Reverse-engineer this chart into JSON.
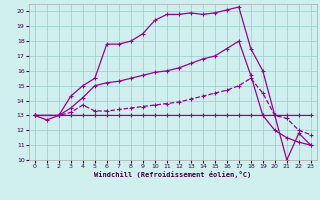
{
  "xlabel": "Windchill (Refroidissement éolien,°C)",
  "bg_color": "#cff0ef",
  "grid_color": "#99cccc",
  "line_color": "#990099",
  "xlim": [
    -0.5,
    23.5
  ],
  "ylim": [
    10,
    20.5
  ],
  "yticks": [
    10,
    11,
    12,
    13,
    14,
    15,
    16,
    17,
    18,
    19,
    20
  ],
  "xticks": [
    0,
    1,
    2,
    3,
    4,
    5,
    6,
    7,
    8,
    9,
    10,
    11,
    12,
    13,
    14,
    15,
    16,
    17,
    18,
    19,
    20,
    21,
    22,
    23
  ],
  "s1_x": [
    0,
    1,
    2,
    3,
    4,
    5,
    6,
    7,
    8,
    9,
    10,
    11,
    12,
    13,
    14,
    15,
    16,
    17,
    18,
    19,
    20,
    21,
    22,
    23
  ],
  "s1_y": [
    13,
    12.7,
    13,
    13,
    13,
    13,
    13,
    13,
    13,
    13,
    13,
    13,
    13,
    13,
    13,
    13,
    13,
    13,
    13,
    13,
    13,
    13,
    13,
    13
  ],
  "s2_x": [
    0,
    2,
    3,
    4,
    5,
    6,
    7,
    8,
    9,
    10,
    11,
    12,
    13,
    14,
    15,
    16,
    17,
    18,
    19,
    20,
    21,
    22,
    23
  ],
  "s2_y": [
    13,
    13,
    13.2,
    13.7,
    13.3,
    13.3,
    13.4,
    13.5,
    13.6,
    13.7,
    13.8,
    13.9,
    14.1,
    14.3,
    14.5,
    14.7,
    15.0,
    15.5,
    14.5,
    13,
    12.8,
    12,
    11.7
  ],
  "s3_x": [
    0,
    2,
    3,
    4,
    5,
    6,
    7,
    8,
    9,
    10,
    11,
    12,
    13,
    14,
    15,
    16,
    17,
    18,
    19,
    20,
    21,
    22,
    23
  ],
  "s3_y": [
    13,
    13,
    13.5,
    14.2,
    15.0,
    15.2,
    15.3,
    15.5,
    15.7,
    15.9,
    16.0,
    16.2,
    16.5,
    16.8,
    17.0,
    17.5,
    18.0,
    15.7,
    13,
    12,
    11.5,
    11.2,
    11.0
  ],
  "s4_x": [
    0,
    2,
    3,
    4,
    5,
    6,
    7,
    8,
    9,
    10,
    11,
    12,
    13,
    14,
    15,
    16,
    17,
    18,
    19,
    20,
    21,
    22,
    23
  ],
  "s4_y": [
    13,
    13,
    14.3,
    15.0,
    15.5,
    17.8,
    17.8,
    18.0,
    18.5,
    19.4,
    19.8,
    19.8,
    19.9,
    19.8,
    19.9,
    20.1,
    20.3,
    17.5,
    16.0,
    13,
    10,
    11.8,
    11.0
  ]
}
